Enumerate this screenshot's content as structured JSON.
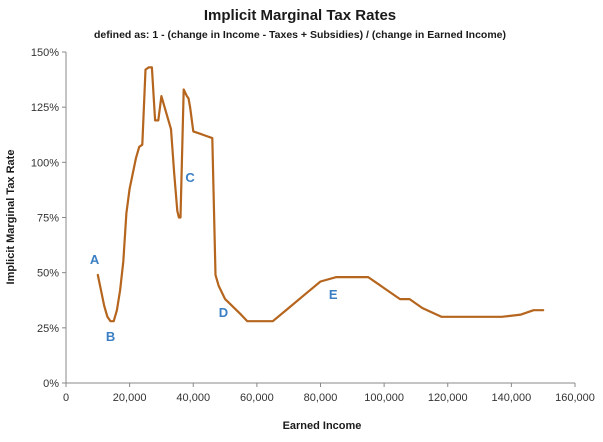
{
  "chart_data": {
    "type": "line",
    "title": "Implicit Marginal Tax Rates",
    "subtitle": "defined as:  1 - (change in Income - Taxes + Subsidies) / (change in Earned Income)",
    "xlabel": "Earned Income",
    "ylabel": "Implicit Marginal Tax Rate",
    "xlim": [
      0,
      160000
    ],
    "ylim": [
      0,
      1.5
    ],
    "x_ticks": [
      0,
      20000,
      40000,
      60000,
      80000,
      100000,
      120000,
      140000,
      160000
    ],
    "x_tick_labels": [
      "0",
      "20,000",
      "40,000",
      "60,000",
      "80,000",
      "100,000",
      "120,000",
      "140,000",
      "160,000"
    ],
    "y_ticks": [
      0,
      0.25,
      0.5,
      0.75,
      1.0,
      1.25,
      1.5
    ],
    "y_tick_labels": [
      "0%",
      "25%",
      "50%",
      "75%",
      "100%",
      "125%",
      "150%"
    ],
    "grid": false,
    "legend": "none",
    "line_color": "#b5651d",
    "annotation_color": "#3a7fc4",
    "series": [
      {
        "x": [
          10000,
          11000,
          12000,
          13000,
          14000,
          15000,
          16000,
          17000,
          18000,
          19000,
          20000,
          21000,
          22000,
          23000,
          24000,
          25000,
          26000,
          27000,
          28000,
          29000,
          30000,
          31000,
          32000,
          33000,
          34000,
          35000,
          35500,
          36000,
          37000,
          38000,
          38500,
          39000,
          40000,
          42000,
          44000,
          46000,
          47000,
          48000,
          50000,
          55000,
          57000,
          60000,
          65000,
          70000,
          75000,
          80000,
          85000,
          90000,
          95000,
          100000,
          105000,
          108000,
          112000,
          115000,
          118000,
          125000,
          137000,
          143000,
          147000,
          150000
        ],
        "y": [
          0.49,
          0.42,
          0.35,
          0.3,
          0.28,
          0.28,
          0.33,
          0.42,
          0.55,
          0.77,
          0.88,
          0.95,
          1.02,
          1.07,
          1.08,
          1.42,
          1.43,
          1.43,
          1.19,
          1.19,
          1.3,
          1.25,
          1.2,
          1.15,
          0.95,
          0.78,
          0.75,
          0.75,
          1.33,
          1.3,
          1.29,
          1.25,
          1.14,
          1.13,
          1.12,
          1.11,
          0.49,
          0.44,
          0.38,
          0.31,
          0.28,
          0.28,
          0.28,
          0.34,
          0.4,
          0.46,
          0.48,
          0.48,
          0.48,
          0.43,
          0.38,
          0.38,
          0.34,
          0.32,
          0.3,
          0.3,
          0.3,
          0.31,
          0.33,
          0.33
        ]
      }
    ],
    "annotations": [
      {
        "text": "A",
        "x": 9000,
        "y": 0.54
      },
      {
        "text": "B",
        "x": 14000,
        "y": 0.19
      },
      {
        "text": "C",
        "x": 39000,
        "y": 0.91
      },
      {
        "text": "D",
        "x": 49500,
        "y": 0.3
      },
      {
        "text": "E",
        "x": 84000,
        "y": 0.38
      }
    ]
  }
}
